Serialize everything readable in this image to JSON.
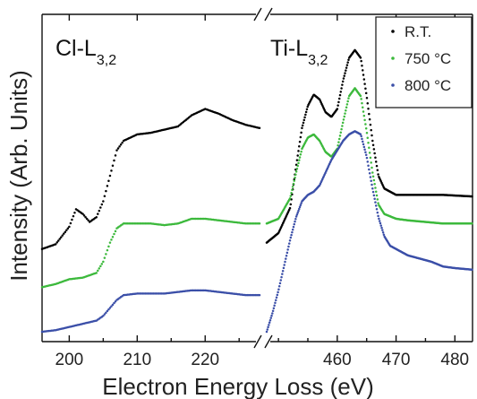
{
  "chart_data": {
    "type": "scatter",
    "xlabel": "Electron Energy Loss (eV)",
    "ylabel": "Intensity (Arb. Units)",
    "y_ticks_shown": false,
    "broken_x_axis": true,
    "panels": [
      {
        "edge_label": "Cl-L",
        "edge_subscript": "3,2",
        "xlim": [
          196,
          228
        ],
        "ticks": [
          200,
          210,
          220
        ],
        "tick_labels": [
          "200",
          "210",
          "220"
        ]
      },
      {
        "edge_label": "Ti-L",
        "edge_subscript": "3,2",
        "xlim": [
          448,
          483
        ],
        "ticks": [
          460,
          470,
          480
        ],
        "tick_labels": [
          "460",
          "470",
          "480"
        ]
      }
    ],
    "legend": {
      "position": "top-right"
    },
    "series": [
      {
        "name": "R.T.",
        "color": "#000000",
        "cl_edge": [
          [
            196,
            0.26
          ],
          [
            198,
            0.275
          ],
          [
            200,
            0.33
          ],
          [
            201,
            0.385
          ],
          [
            202,
            0.37
          ],
          [
            203,
            0.345
          ],
          [
            204,
            0.36
          ],
          [
            205,
            0.41
          ],
          [
            206,
            0.49
          ],
          [
            207,
            0.57
          ],
          [
            208,
            0.6
          ],
          [
            210,
            0.62
          ],
          [
            212,
            0.625
          ],
          [
            214,
            0.635
          ],
          [
            216,
            0.645
          ],
          [
            218,
            0.68
          ],
          [
            220,
            0.7
          ],
          [
            222,
            0.685
          ],
          [
            224,
            0.665
          ],
          [
            226,
            0.65
          ],
          [
            228,
            0.64
          ]
        ],
        "ti_edge": [
          [
            448,
            0.28
          ],
          [
            450,
            0.31
          ],
          [
            452,
            0.39
          ],
          [
            453,
            0.52
          ],
          [
            454,
            0.64
          ],
          [
            455,
            0.71
          ],
          [
            456,
            0.745
          ],
          [
            457,
            0.73
          ],
          [
            458,
            0.69
          ],
          [
            459,
            0.675
          ],
          [
            460,
            0.7
          ],
          [
            461,
            0.79
          ],
          [
            462,
            0.86
          ],
          [
            463,
            0.885
          ],
          [
            464,
            0.86
          ],
          [
            465,
            0.74
          ],
          [
            466,
            0.6
          ],
          [
            467,
            0.49
          ],
          [
            468,
            0.45
          ],
          [
            470,
            0.43
          ],
          [
            472,
            0.43
          ],
          [
            475,
            0.43
          ],
          [
            478,
            0.43
          ],
          [
            483,
            0.425
          ]
        ]
      },
      {
        "name": "750 °C",
        "color": "#3cb93c",
        "cl_edge": [
          [
            196,
            0.14
          ],
          [
            198,
            0.15
          ],
          [
            200,
            0.165
          ],
          [
            202,
            0.17
          ],
          [
            204,
            0.185
          ],
          [
            205,
            0.22
          ],
          [
            206,
            0.28
          ],
          [
            207,
            0.325
          ],
          [
            208,
            0.34
          ],
          [
            210,
            0.34
          ],
          [
            212,
            0.34
          ],
          [
            214,
            0.335
          ],
          [
            216,
            0.34
          ],
          [
            218,
            0.355
          ],
          [
            220,
            0.355
          ],
          [
            222,
            0.35
          ],
          [
            224,
            0.345
          ],
          [
            226,
            0.34
          ],
          [
            228,
            0.34
          ]
        ],
        "ti_edge": [
          [
            448,
            0.34
          ],
          [
            450,
            0.355
          ],
          [
            452,
            0.42
          ],
          [
            453,
            0.5
          ],
          [
            454,
            0.575
          ],
          [
            455,
            0.61
          ],
          [
            456,
            0.62
          ],
          [
            457,
            0.6
          ],
          [
            458,
            0.565
          ],
          [
            459,
            0.55
          ],
          [
            460,
            0.575
          ],
          [
            461,
            0.66
          ],
          [
            462,
            0.74
          ],
          [
            463,
            0.765
          ],
          [
            464,
            0.74
          ],
          [
            465,
            0.63
          ],
          [
            466,
            0.5
          ],
          [
            467,
            0.4
          ],
          [
            468,
            0.37
          ],
          [
            470,
            0.355
          ],
          [
            472,
            0.35
          ],
          [
            475,
            0.345
          ],
          [
            478,
            0.34
          ],
          [
            483,
            0.34
          ]
        ]
      },
      {
        "name": "800 °C",
        "color": "#3b4fa8",
        "cl_edge": [
          [
            196,
            0.0
          ],
          [
            198,
            0.005
          ],
          [
            200,
            0.015
          ],
          [
            202,
            0.025
          ],
          [
            204,
            0.035
          ],
          [
            205,
            0.05
          ],
          [
            206,
            0.075
          ],
          [
            207,
            0.1
          ],
          [
            208,
            0.115
          ],
          [
            210,
            0.12
          ],
          [
            212,
            0.12
          ],
          [
            214,
            0.12
          ],
          [
            216,
            0.125
          ],
          [
            218,
            0.13
          ],
          [
            220,
            0.13
          ],
          [
            222,
            0.125
          ],
          [
            224,
            0.12
          ],
          [
            226,
            0.115
          ],
          [
            228,
            0.115
          ]
        ],
        "ti_edge": [
          [
            448,
            0.0
          ],
          [
            449,
            0.06
          ],
          [
            450,
            0.13
          ],
          [
            451,
            0.21
          ],
          [
            452,
            0.29
          ],
          [
            453,
            0.36
          ],
          [
            454,
            0.41
          ],
          [
            455,
            0.43
          ],
          [
            456,
            0.44
          ],
          [
            457,
            0.46
          ],
          [
            458,
            0.5
          ],
          [
            459,
            0.54
          ],
          [
            460,
            0.57
          ],
          [
            461,
            0.6
          ],
          [
            462,
            0.62
          ],
          [
            463,
            0.63
          ],
          [
            464,
            0.62
          ],
          [
            465,
            0.55
          ],
          [
            466,
            0.45
          ],
          [
            467,
            0.36
          ],
          [
            468,
            0.3
          ],
          [
            469,
            0.27
          ],
          [
            470,
            0.26
          ],
          [
            472,
            0.24
          ],
          [
            474,
            0.23
          ],
          [
            476,
            0.22
          ],
          [
            478,
            0.205
          ],
          [
            480,
            0.2
          ],
          [
            483,
            0.195
          ]
        ]
      }
    ]
  }
}
